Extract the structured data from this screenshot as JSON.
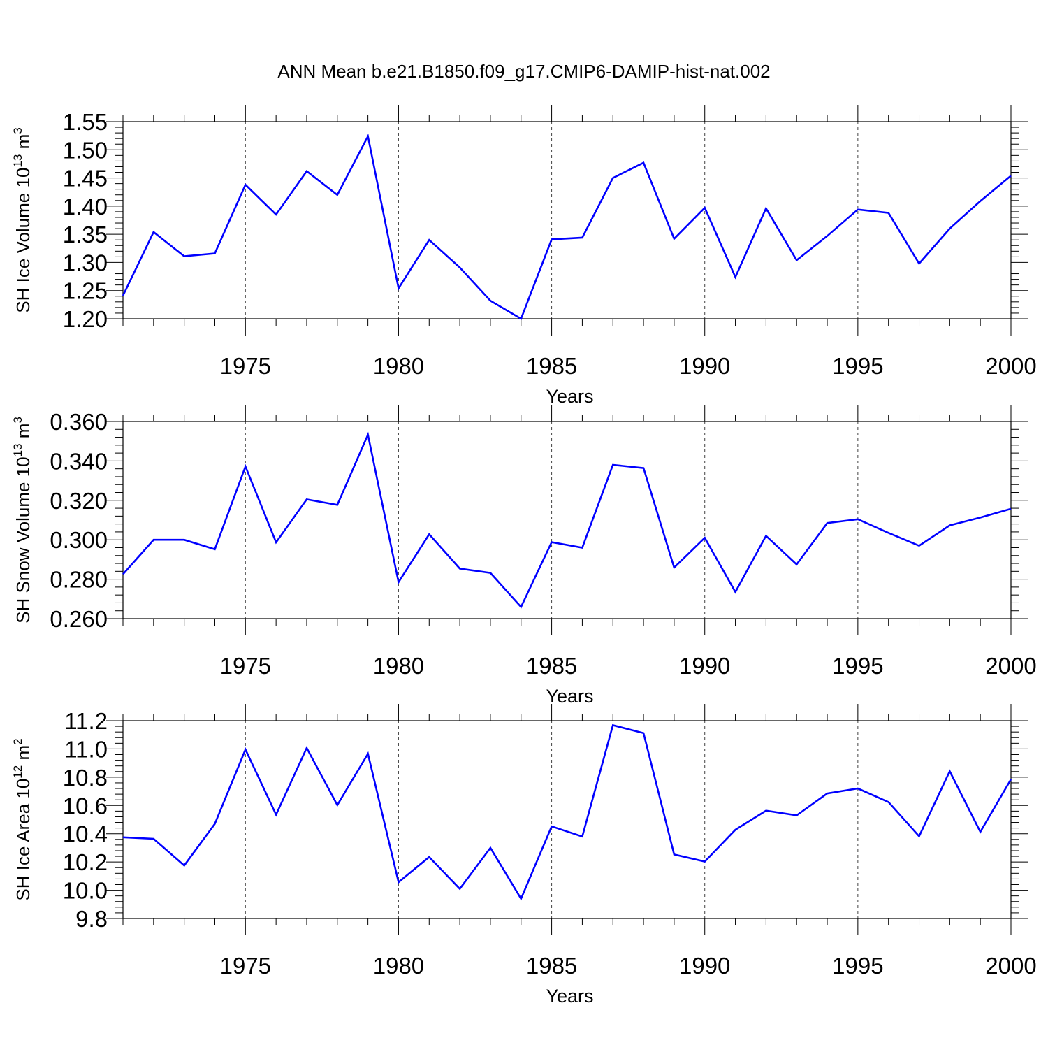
{
  "title": "ANN Mean b.e21.B1850.f09_g17.CMIP6-DAMIP-hist-nat.002",
  "line_color": "#0000ff",
  "chart_data": [
    {
      "type": "line",
      "title": "ANN Mean b.e21.B1850.f09_g17.CMIP6-DAMIP-hist-nat.002",
      "xlabel": "Years",
      "ylabel": "SH Ice Volume 10",
      "ylabel_sup": "13",
      "ylabel_unit": " m",
      "ylabel_unit_sup": "3",
      "xlim": [
        1971,
        2000
      ],
      "ylim": [
        1.2,
        1.55
      ],
      "xticks": [
        1975,
        1980,
        1985,
        1990,
        1995,
        2000
      ],
      "yticks": [
        1.2,
        1.25,
        1.3,
        1.35,
        1.4,
        1.45,
        1.5,
        1.55
      ],
      "ytick_labels": [
        "1.20",
        "1.25",
        "1.30",
        "1.35",
        "1.40",
        "1.45",
        "1.50",
        "1.55"
      ],
      "grid": "vertical dashed at major x ticks",
      "x": [
        1971,
        1972,
        1973,
        1974,
        1975,
        1976,
        1977,
        1978,
        1979,
        1980,
        1981,
        1982,
        1983,
        1984,
        1985,
        1986,
        1987,
        1988,
        1989,
        1990,
        1991,
        1992,
        1993,
        1994,
        1995,
        1996,
        1997,
        1998,
        1999,
        2000
      ],
      "values": [
        1.241,
        1.354,
        1.311,
        1.316,
        1.438,
        1.385,
        1.462,
        1.42,
        1.524,
        1.254,
        1.34,
        1.291,
        1.232,
        1.2,
        1.341,
        1.344,
        1.45,
        1.477,
        1.342,
        1.397,
        1.274,
        1.396,
        1.304,
        1.347,
        1.394,
        1.388,
        1.298,
        1.36,
        1.409,
        1.454
      ]
    },
    {
      "type": "line",
      "xlabel": "Years",
      "ylabel": "SH Snow Volume 10",
      "ylabel_sup": "13",
      "ylabel_unit": " m",
      "ylabel_unit_sup": "3",
      "xlim": [
        1971,
        2000
      ],
      "ylim": [
        0.26,
        0.36
      ],
      "xticks": [
        1975,
        1980,
        1985,
        1990,
        1995,
        2000
      ],
      "yticks": [
        0.26,
        0.28,
        0.3,
        0.32,
        0.34,
        0.36
      ],
      "ytick_labels": [
        "0.260",
        "0.280",
        "0.300",
        "0.320",
        "0.340",
        "0.360"
      ],
      "grid": "vertical dashed at major x ticks",
      "x": [
        1971,
        1972,
        1973,
        1974,
        1975,
        1976,
        1977,
        1978,
        1979,
        1980,
        1981,
        1982,
        1983,
        1984,
        1985,
        1986,
        1987,
        1988,
        1989,
        1990,
        1991,
        1992,
        1993,
        1994,
        1995,
        1996,
        1997,
        1998,
        1999,
        2000
      ],
      "values": [
        0.2825,
        0.3,
        0.3,
        0.2952,
        0.3372,
        0.2987,
        0.3205,
        0.3177,
        0.3533,
        0.2785,
        0.3028,
        0.2854,
        0.2832,
        0.2659,
        0.2988,
        0.296,
        0.338,
        0.3364,
        0.2859,
        0.301,
        0.2735,
        0.302,
        0.2875,
        0.3085,
        0.3104,
        0.3035,
        0.297,
        0.3073,
        0.3113,
        0.3157
      ]
    },
    {
      "type": "line",
      "xlabel": "Years",
      "ylabel": "SH Ice Area 10",
      "ylabel_sup": "12",
      "ylabel_unit": " m",
      "ylabel_unit_sup": "2",
      "xlim": [
        1971,
        2000
      ],
      "ylim": [
        9.8,
        11.2
      ],
      "xticks": [
        1975,
        1980,
        1985,
        1990,
        1995,
        2000
      ],
      "yticks": [
        9.8,
        10.0,
        10.2,
        10.4,
        10.6,
        10.8,
        11.0,
        11.2
      ],
      "ytick_labels": [
        "9.8",
        "10.0",
        "10.2",
        "10.4",
        "10.6",
        "10.8",
        "11.0",
        "11.2"
      ],
      "grid": "vertical dashed at major x ticks",
      "x": [
        1971,
        1972,
        1973,
        1974,
        1975,
        1976,
        1977,
        1978,
        1979,
        1980,
        1981,
        1982,
        1983,
        1984,
        1985,
        1986,
        1987,
        1988,
        1989,
        1990,
        1991,
        1992,
        1993,
        1994,
        1995,
        1996,
        1997,
        1998,
        1999,
        2000
      ],
      "values": [
        10.375,
        10.364,
        10.175,
        10.47,
        10.996,
        10.535,
        11.007,
        10.603,
        10.966,
        10.057,
        10.235,
        10.01,
        10.3,
        9.94,
        10.452,
        10.38,
        11.168,
        11.112,
        10.253,
        10.203,
        10.428,
        10.563,
        10.53,
        10.685,
        10.72,
        10.624,
        10.382,
        10.842,
        10.413,
        10.785
      ]
    }
  ]
}
